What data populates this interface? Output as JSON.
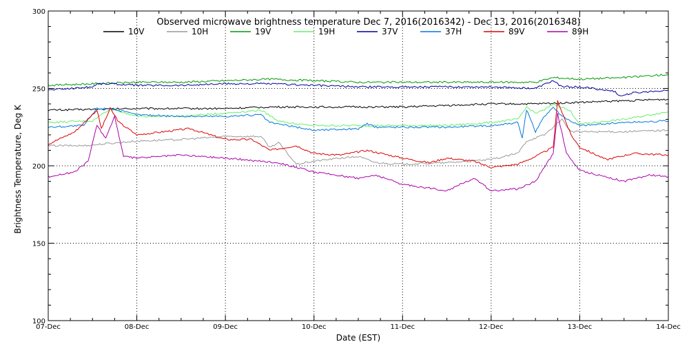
{
  "chart_data": {
    "type": "line",
    "title": "Observed microwave brightness temperature Dec  7, 2016(2016342) - Dec 13, 2016(2016348)",
    "xlabel": "Date (EST)",
    "ylabel": "Brightness Temperature, Deg K",
    "xlim": [
      0,
      7
    ],
    "ylim": [
      100,
      300
    ],
    "x_ticks": [
      {
        "value": 0,
        "label": "07-Dec"
      },
      {
        "value": 1,
        "label": "08-Dec"
      },
      {
        "value": 2,
        "label": "09-Dec"
      },
      {
        "value": 3,
        "label": "10-Dec"
      },
      {
        "value": 4,
        "label": "11-Dec"
      },
      {
        "value": 5,
        "label": "12-Dec"
      },
      {
        "value": 6,
        "label": "13-Dec"
      },
      {
        "value": 7,
        "label": "14-Dec"
      }
    ],
    "y_ticks": [
      100,
      150,
      200,
      250,
      300
    ],
    "grid": "dotted",
    "legend_position": "top",
    "series": [
      {
        "name": "10V",
        "color": "#000000",
        "points": [
          [
            0,
            236
          ],
          [
            0.5,
            236.5
          ],
          [
            1,
            237
          ],
          [
            1.5,
            237
          ],
          [
            2,
            237
          ],
          [
            2.5,
            238
          ],
          [
            3,
            238
          ],
          [
            3.5,
            238
          ],
          [
            4,
            238
          ],
          [
            4.5,
            239
          ],
          [
            5,
            240
          ],
          [
            5.5,
            240
          ],
          [
            6,
            241
          ],
          [
            6.5,
            242
          ],
          [
            7,
            243
          ]
        ]
      },
      {
        "name": "10H",
        "color": "#999999",
        "points": [
          [
            0,
            213
          ],
          [
            0.4,
            213
          ],
          [
            0.6,
            214
          ],
          [
            1,
            216
          ],
          [
            1.5,
            217
          ],
          [
            2,
            219
          ],
          [
            2.4,
            219
          ],
          [
            2.5,
            212
          ],
          [
            2.6,
            215
          ],
          [
            2.8,
            201
          ],
          [
            3,
            203
          ],
          [
            3.3,
            205
          ],
          [
            3.5,
            206
          ],
          [
            3.7,
            202
          ],
          [
            4,
            201
          ],
          [
            4.5,
            202
          ],
          [
            5,
            204
          ],
          [
            5.3,
            208
          ],
          [
            5.4,
            216
          ],
          [
            5.5,
            218
          ],
          [
            5.6,
            220
          ],
          [
            5.7,
            225
          ],
          [
            5.8,
            230
          ],
          [
            5.9,
            222
          ],
          [
            6,
            222
          ],
          [
            6.5,
            222
          ],
          [
            7,
            223
          ]
        ]
      },
      {
        "name": "19V",
        "color": "#009900",
        "points": [
          [
            0,
            252
          ],
          [
            0.5,
            253
          ],
          [
            1,
            254
          ],
          [
            1.5,
            254
          ],
          [
            2,
            255
          ],
          [
            2.5,
            256
          ],
          [
            3,
            255
          ],
          [
            3.5,
            254
          ],
          [
            4,
            254
          ],
          [
            4.5,
            254
          ],
          [
            5,
            254
          ],
          [
            5.5,
            254
          ],
          [
            5.7,
            257
          ],
          [
            6,
            256
          ],
          [
            6.5,
            257
          ],
          [
            7,
            259
          ]
        ]
      },
      {
        "name": "19H",
        "color": "#66ee66",
        "points": [
          [
            0,
            228
          ],
          [
            0.5,
            229
          ],
          [
            0.7,
            237
          ],
          [
            1,
            232
          ],
          [
            1.5,
            232
          ],
          [
            2,
            234
          ],
          [
            2.4,
            236
          ],
          [
            2.6,
            229
          ],
          [
            2.8,
            227
          ],
          [
            3,
            226
          ],
          [
            3.5,
            226
          ],
          [
            4,
            226
          ],
          [
            4.5,
            226
          ],
          [
            5,
            228
          ],
          [
            5.3,
            230
          ],
          [
            5.4,
            238
          ],
          [
            5.5,
            234
          ],
          [
            5.6,
            236
          ],
          [
            5.7,
            240
          ],
          [
            5.8,
            238
          ],
          [
            5.9,
            235
          ],
          [
            6,
            227
          ],
          [
            6.5,
            230
          ],
          [
            7,
            235
          ]
        ]
      },
      {
        "name": "37V",
        "color": "#000099",
        "points": [
          [
            0,
            249
          ],
          [
            0.5,
            251
          ],
          [
            0.55,
            253
          ],
          [
            0.7,
            253
          ],
          [
            1,
            252
          ],
          [
            1.5,
            252
          ],
          [
            2,
            253
          ],
          [
            2.5,
            253
          ],
          [
            3,
            252
          ],
          [
            3.5,
            251
          ],
          [
            4,
            251
          ],
          [
            4.5,
            251
          ],
          [
            5,
            251
          ],
          [
            5.5,
            250
          ],
          [
            5.7,
            255
          ],
          [
            5.8,
            251
          ],
          [
            6,
            251
          ],
          [
            6.4,
            248
          ],
          [
            6.45,
            245
          ],
          [
            6.6,
            247
          ],
          [
            7,
            249
          ]
        ]
      },
      {
        "name": "37H",
        "color": "#0077dd",
        "points": [
          [
            0,
            225
          ],
          [
            0.4,
            226
          ],
          [
            0.55,
            237
          ],
          [
            0.7,
            237
          ],
          [
            1,
            233
          ],
          [
            1.5,
            232
          ],
          [
            2,
            232
          ],
          [
            2.4,
            233
          ],
          [
            2.5,
            228
          ],
          [
            2.8,
            225
          ],
          [
            3,
            223
          ],
          [
            3.5,
            224
          ],
          [
            3.6,
            227
          ],
          [
            3.7,
            225
          ],
          [
            4,
            225
          ],
          [
            4.5,
            225
          ],
          [
            5,
            226
          ],
          [
            5.3,
            228
          ],
          [
            5.35,
            218
          ],
          [
            5.4,
            236
          ],
          [
            5.5,
            222
          ],
          [
            5.6,
            232
          ],
          [
            5.7,
            238
          ],
          [
            5.8,
            232
          ],
          [
            6,
            226
          ],
          [
            6.5,
            228
          ],
          [
            7,
            229
          ]
        ]
      },
      {
        "name": "89V",
        "color": "#dd0000",
        "points": [
          [
            0,
            214
          ],
          [
            0.3,
            222
          ],
          [
            0.55,
            236
          ],
          [
            0.6,
            224
          ],
          [
            0.7,
            237
          ],
          [
            0.8,
            228
          ],
          [
            1,
            220
          ],
          [
            1.3,
            222
          ],
          [
            1.6,
            224
          ],
          [
            2,
            217
          ],
          [
            2.3,
            217
          ],
          [
            2.5,
            210
          ],
          [
            2.8,
            213
          ],
          [
            3,
            208
          ],
          [
            3.3,
            207
          ],
          [
            3.6,
            210
          ],
          [
            4,
            205
          ],
          [
            4.3,
            202
          ],
          [
            4.5,
            205
          ],
          [
            4.8,
            203
          ],
          [
            5,
            199
          ],
          [
            5.3,
            201
          ],
          [
            5.5,
            206
          ],
          [
            5.7,
            212
          ],
          [
            5.75,
            242
          ],
          [
            5.9,
            220
          ],
          [
            6,
            212
          ],
          [
            6.3,
            204
          ],
          [
            6.6,
            208
          ],
          [
            7,
            207
          ]
        ]
      },
      {
        "name": "89H",
        "color": "#aa00aa",
        "points": [
          [
            0,
            193
          ],
          [
            0.3,
            196
          ],
          [
            0.45,
            203
          ],
          [
            0.55,
            226
          ],
          [
            0.65,
            218
          ],
          [
            0.75,
            232
          ],
          [
            0.85,
            206
          ],
          [
            1,
            205
          ],
          [
            1.5,
            207
          ],
          [
            2,
            205
          ],
          [
            2.4,
            203
          ],
          [
            2.6,
            202
          ],
          [
            3,
            196
          ],
          [
            3.5,
            192
          ],
          [
            3.7,
            194
          ],
          [
            4,
            188
          ],
          [
            4.5,
            184
          ],
          [
            4.8,
            192
          ],
          [
            5,
            184
          ],
          [
            5.3,
            185
          ],
          [
            5.5,
            190
          ],
          [
            5.7,
            208
          ],
          [
            5.75,
            234
          ],
          [
            5.85,
            208
          ],
          [
            6,
            197
          ],
          [
            6.5,
            190
          ],
          [
            6.8,
            194
          ],
          [
            7,
            193
          ]
        ]
      }
    ]
  }
}
